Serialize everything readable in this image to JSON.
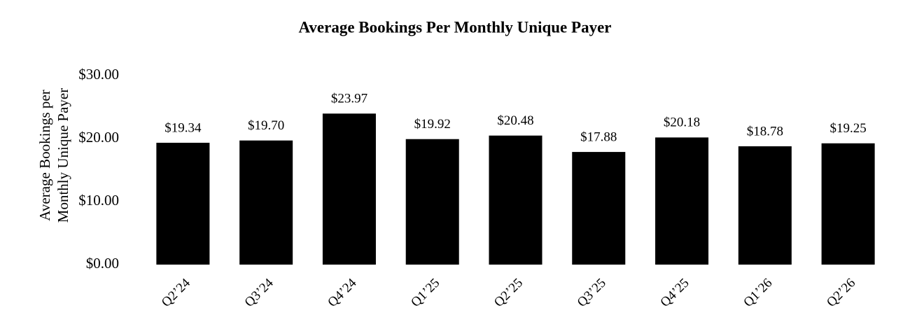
{
  "chart_data": {
    "type": "bar",
    "title": "Average Bookings Per Monthly Unique Payer",
    "ylabel": [
      "Average Bookings per",
      "Monthly Unique Payer"
    ],
    "categories": [
      "Q2’24",
      "Q3’24",
      "Q4’24",
      "Q1’25",
      "Q2’25",
      "Q3’25",
      "Q4’25",
      "Q1’26",
      "Q2’26"
    ],
    "values": [
      19.34,
      19.7,
      23.97,
      19.92,
      20.48,
      17.88,
      20.18,
      18.78,
      19.25
    ],
    "value_labels": [
      "$19.34",
      "$19.70",
      "$23.97",
      "$19.92",
      "$20.48",
      "$17.88",
      "$20.18",
      "$18.78",
      "$19.25"
    ],
    "color": "#000000",
    "ylim": [
      0,
      30
    ],
    "yticks": [
      {
        "value": 0,
        "label": "$0.00"
      },
      {
        "value": 10,
        "label": "$10.00"
      },
      {
        "value": 20,
        "label": "$20.00"
      },
      {
        "value": 30,
        "label": "$30.00"
      }
    ],
    "grid": false
  }
}
